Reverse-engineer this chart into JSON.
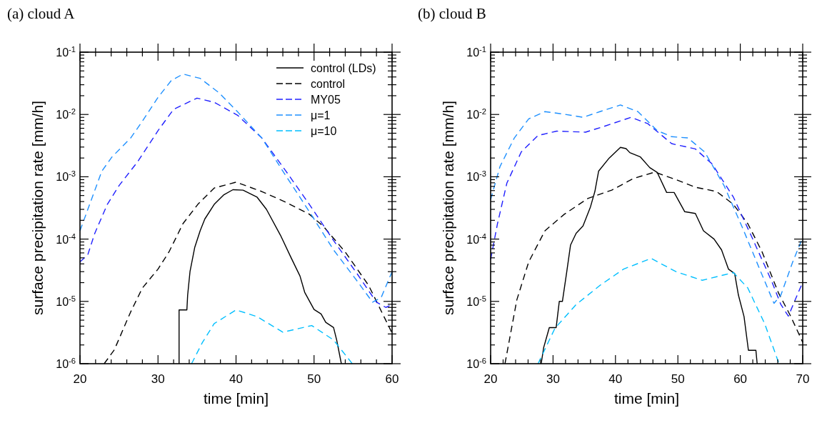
{
  "chart_data": [
    {
      "type": "line",
      "title": "(a) cloud A",
      "xlabel": "time [min]",
      "ylabel": "surface precipitation rate [mm/h]",
      "log": "y",
      "legend": "top right",
      "grid": false,
      "xlim": [
        20,
        60
      ],
      "ylim": [
        1e-06,
        0.1
      ],
      "xticks": [
        20,
        {
          "value": 22,
          "label": null
        },
        {
          "value": 24,
          "label": null
        },
        {
          "value": 26,
          "label": null
        },
        {
          "value": 28,
          "label": null
        },
        30,
        {
          "value": 32,
          "label": null
        },
        {
          "value": 34,
          "label": null
        },
        {
          "value": 36,
          "label": null
        },
        {
          "value": 38,
          "label": null
        },
        40,
        {
          "value": 42,
          "label": null
        },
        {
          "value": 44,
          "label": null
        },
        {
          "value": 46,
          "label": null
        },
        {
          "value": 48,
          "label": null
        },
        50,
        {
          "value": 52,
          "label": null
        },
        {
          "value": 54,
          "label": null
        },
        {
          "value": 56,
          "label": null
        },
        {
          "value": 58,
          "label": null
        },
        60
      ],
      "yticks": [
        {
          "value": 1e-06,
          "label": "10$^{-6}$"
        },
        {
          "value": 2e-06,
          "label": null
        },
        {
          "value": 3e-06,
          "label": null
        },
        {
          "value": 4e-06,
          "label": null
        },
        {
          "value": 5e-06,
          "label": null
        },
        {
          "value": 6e-06,
          "label": null
        },
        {
          "value": 7e-06,
          "label": null
        },
        {
          "value": 8e-06,
          "label": null
        },
        {
          "value": 9e-06,
          "label": null
        },
        {
          "value": 1e-05,
          "label": "10$^{-5}$"
        },
        {
          "value": 2e-05,
          "label": null
        },
        {
          "value": 3e-05,
          "label": null
        },
        {
          "value": 4e-05,
          "label": null
        },
        {
          "value": 5e-05,
          "label": null
        },
        {
          "value": 6e-05,
          "label": null
        },
        {
          "value": 7e-05,
          "label": null
        },
        {
          "value": 8e-05,
          "label": null
        },
        {
          "value": 9e-05,
          "label": null
        },
        {
          "value": 0.0001,
          "label": "10$^{-4}$"
        },
        {
          "value": 0.0002,
          "label": null
        },
        {
          "value": 0.0003,
          "label": null
        },
        {
          "value": 0.0004,
          "label": null
        },
        {
          "value": 0.0005,
          "label": null
        },
        {
          "value": 0.0006,
          "label": null
        },
        {
          "value": 0.0007,
          "label": null
        },
        {
          "value": 0.0008,
          "label": null
        },
        {
          "value": 0.0009,
          "label": null
        },
        {
          "value": 0.001,
          "label": "10$^{-3}$"
        },
        {
          "value": 0.002,
          "label": null
        },
        {
          "value": 0.003,
          "label": null
        },
        {
          "value": 0.004,
          "label": null
        },
        {
          "value": 0.005,
          "label": null
        },
        {
          "value": 0.006,
          "label": null
        },
        {
          "value": 0.007,
          "label": null
        },
        {
          "value": 0.008,
          "label": null
        },
        {
          "value": 0.009,
          "label": null
        },
        {
          "value": 0.01,
          "label": "10$^{-2}$"
        },
        {
          "value": 0.02,
          "label": null
        },
        {
          "value": 0.03,
          "label": null
        },
        {
          "value": 0.04,
          "label": null
        },
        {
          "value": 0.05,
          "label": null
        },
        {
          "value": 0.06,
          "label": null
        },
        {
          "value": 0.07,
          "label": null
        },
        {
          "value": 0.08,
          "label": null
        },
        {
          "value": 0.09,
          "label": null
        },
        {
          "value": 0.1,
          "label": "10$^{-1}$"
        }
      ],
      "series": [
        {
          "name": "control (LDs)",
          "color": "#000000",
          "line_style": "solid",
          "x": [
            32.7,
            32.7,
            33.7,
            33.8,
            34.1,
            34.7,
            35.4,
            36,
            37.2,
            38.4,
            39.6,
            40.9,
            42.7,
            43.9,
            45.7,
            47,
            48.2,
            48.8,
            50,
            50.9,
            51.5,
            52.5,
            52.9,
            53.5
          ],
          "values": [
            1e-06,
            7.3e-06,
            7.3e-06,
            1.26e-05,
            3e-05,
            7.3e-05,
            0.000136,
            0.00021,
            0.00036,
            0.00051,
            0.00062,
            0.00061,
            0.00047,
            0.0003,
            0.000115,
            5.2e-05,
            2.55e-05,
            1.4e-05,
            7.4e-06,
            6.3e-06,
            4.6e-06,
            3.8e-06,
            2.4e-06,
            1e-06
          ]
        },
        {
          "name": "control",
          "color": "#000000",
          "line_style": "dashed",
          "x": [
            23.1,
            24.4,
            26.5,
            28,
            30,
            31.4,
            33.2,
            35.1,
            37.2,
            40,
            43.3,
            46.4,
            49.4,
            51.2,
            54,
            57,
            60
          ],
          "values": [
            1e-06,
            1.67e-06,
            6.8e-06,
            1.64e-05,
            3.3e-05,
            6.2e-05,
            0.000177,
            0.00036,
            0.00066,
            0.00082,
            0.00058,
            0.00039,
            0.00025,
            0.00016,
            6.2e-05,
            1.8e-05,
            3.1e-06
          ]
        },
        {
          "name": "MY05",
          "color": "#2020ff",
          "line_style": "dashed",
          "x": [
            20,
            21,
            21.9,
            23.5,
            25,
            27.4,
            30,
            32,
            35,
            37.2,
            40.2,
            43.3,
            46.4,
            49.4,
            52.5,
            55.5,
            58,
            59.2,
            60
          ],
          "values": [
            4.3e-05,
            5.6e-05,
            0.000124,
            0.00036,
            0.00072,
            0.00175,
            0.0055,
            0.0121,
            0.0183,
            0.0157,
            0.0097,
            0.0042,
            0.00123,
            0.00036,
            9.5e-05,
            2.8e-05,
            9.7e-06,
            8e-06,
            8.9e-06
          ]
        },
        {
          "name": "μ=1",
          "color": "#1e90ff",
          "line_style": "dashed",
          "x": [
            20,
            22.8,
            24.1,
            26.5,
            28,
            30,
            31.7,
            33.2,
            35.4,
            37.8,
            40.2,
            43.3,
            46.4,
            49.4,
            52.5,
            55.5,
            57.5,
            58.6,
            60
          ],
          "values": [
            0.000136,
            0.00123,
            0.00208,
            0.0042,
            0.0078,
            0.0188,
            0.035,
            0.0445,
            0.038,
            0.0224,
            0.011,
            0.0042,
            0.00103,
            0.000275,
            6.7e-05,
            2.14e-05,
            9.7e-06,
            1.15e-05,
            3e-05
          ]
        },
        {
          "name": "μ=10",
          "color": "#00bfff",
          "line_style": "dashed",
          "x": [
            34.3,
            35.7,
            37.2,
            40,
            42.7,
            46,
            49.7,
            52.5,
            54.9
          ],
          "values": [
            1e-06,
            2.2e-06,
            4.4e-06,
            7.3e-06,
            5.7e-06,
            3.2e-06,
            4.1e-06,
            2.4e-06,
            1e-06
          ]
        }
      ]
    },
    {
      "type": "line",
      "title": "(b) cloud B",
      "xlabel": "time [min]",
      "ylabel": "surface precipitation rate [mm/h]",
      "log": "y",
      "grid": false,
      "xlim": [
        20,
        70
      ],
      "ylim": [
        1e-06,
        0.1
      ],
      "xticks": [
        20,
        {
          "value": 22,
          "label": null
        },
        {
          "value": 24,
          "label": null
        },
        {
          "value": 26,
          "label": null
        },
        {
          "value": 28,
          "label": null
        },
        30,
        {
          "value": 32,
          "label": null
        },
        {
          "value": 34,
          "label": null
        },
        {
          "value": 36,
          "label": null
        },
        {
          "value": 38,
          "label": null
        },
        40,
        {
          "value": 42,
          "label": null
        },
        {
          "value": 44,
          "label": null
        },
        {
          "value": 46,
          "label": null
        },
        {
          "value": 48,
          "label": null
        },
        50,
        {
          "value": 52,
          "label": null
        },
        {
          "value": 54,
          "label": null
        },
        {
          "value": 56,
          "label": null
        },
        {
          "value": 58,
          "label": null
        },
        60,
        {
          "value": 62,
          "label": null
        },
        {
          "value": 64,
          "label": null
        },
        {
          "value": 66,
          "label": null
        },
        {
          "value": 68,
          "label": null
        },
        70
      ],
      "yticks": [
        {
          "value": 1e-06,
          "label": "10$^{-6}$"
        },
        {
          "value": 2e-06,
          "label": null
        },
        {
          "value": 3e-06,
          "label": null
        },
        {
          "value": 4e-06,
          "label": null
        },
        {
          "value": 5e-06,
          "label": null
        },
        {
          "value": 6e-06,
          "label": null
        },
        {
          "value": 7e-06,
          "label": null
        },
        {
          "value": 8e-06,
          "label": null
        },
        {
          "value": 9e-06,
          "label": null
        },
        {
          "value": 1e-05,
          "label": "10$^{-5}$"
        },
        {
          "value": 2e-05,
          "label": null
        },
        {
          "value": 3e-05,
          "label": null
        },
        {
          "value": 4e-05,
          "label": null
        },
        {
          "value": 5e-05,
          "label": null
        },
        {
          "value": 6e-05,
          "label": null
        },
        {
          "value": 7e-05,
          "label": null
        },
        {
          "value": 8e-05,
          "label": null
        },
        {
          "value": 9e-05,
          "label": null
        },
        {
          "value": 0.0001,
          "label": "10$^{-4}$"
        },
        {
          "value": 0.0002,
          "label": null
        },
        {
          "value": 0.0003,
          "label": null
        },
        {
          "value": 0.0004,
          "label": null
        },
        {
          "value": 0.0005,
          "label": null
        },
        {
          "value": 0.0006,
          "label": null
        },
        {
          "value": 0.0007,
          "label": null
        },
        {
          "value": 0.0008,
          "label": null
        },
        {
          "value": 0.0009,
          "label": null
        },
        {
          "value": 0.001,
          "label": "10$^{-3}$"
        },
        {
          "value": 0.002,
          "label": null
        },
        {
          "value": 0.003,
          "label": null
        },
        {
          "value": 0.004,
          "label": null
        },
        {
          "value": 0.005,
          "label": null
        },
        {
          "value": 0.006,
          "label": null
        },
        {
          "value": 0.007,
          "label": null
        },
        {
          "value": 0.008,
          "label": null
        },
        {
          "value": 0.009,
          "label": null
        },
        {
          "value": 0.01,
          "label": "10$^{-2}$"
        },
        {
          "value": 0.02,
          "label": null
        },
        {
          "value": 0.03,
          "label": null
        },
        {
          "value": 0.04,
          "label": null
        },
        {
          "value": 0.05,
          "label": null
        },
        {
          "value": 0.06,
          "label": null
        },
        {
          "value": 0.07,
          "label": null
        },
        {
          "value": 0.08,
          "label": null
        },
        {
          "value": 0.09,
          "label": null
        },
        {
          "value": 0.1,
          "label": "10$^{-1}$"
        }
      ],
      "series": [
        {
          "color": "#000000",
          "line_style": "solid",
          "x": [
            28.1,
            28.5,
            29.4,
            30.5,
            31,
            31.5,
            32.2,
            32.8,
            33.7,
            34.8,
            36,
            36.7,
            37.3,
            39,
            40.8,
            41.7,
            42.3,
            44,
            45.5,
            46.7,
            48.2,
            49.4,
            51.1,
            52.8,
            54.1,
            55.8,
            57,
            58.1,
            59.1,
            59.7,
            60.6,
            61.3,
            62.5,
            62.7
          ],
          "values": [
            1e-06,
            1.82e-06,
            3.8e-06,
            3.8e-06,
            1e-05,
            1e-05,
            3e-05,
            8e-05,
            0.000124,
            0.000162,
            0.00033,
            0.00058,
            0.00123,
            0.002,
            0.00296,
            0.00283,
            0.00244,
            0.00208,
            0.0014,
            0.00117,
            0.00056,
            0.00056,
            0.000275,
            0.000258,
            0.000136,
            0.0001,
            6.7e-05,
            3.3e-05,
            2.8e-05,
            1.26e-05,
            5.7e-06,
            1.64e-06,
            1.64e-06,
            1e-06
          ]
        },
        {
          "color": "#000000",
          "line_style": "dashed",
          "x": [
            22.3,
            24.2,
            26.1,
            28.7,
            31.8,
            35.6,
            39.4,
            42.9,
            46.3,
            49.7,
            52.8,
            56.2,
            58.9,
            61.2,
            63.5,
            66.1,
            68.1,
            70
          ],
          "values": [
            1e-06,
            1.06e-05,
            4.3e-05,
            0.000136,
            0.00025,
            0.00045,
            0.00061,
            0.00094,
            0.00119,
            0.0009,
            0.00068,
            0.00058,
            0.00036,
            0.000177,
            6.2e-05,
            1.38e-05,
            5.7e-06,
            2.2e-06
          ]
        },
        {
          "color": "#2020ff",
          "line_style": "dashed",
          "x": [
            20,
            21.1,
            22.6,
            24.9,
            27.6,
            30.6,
            35.2,
            38.3,
            42.5,
            45.2,
            49,
            52.8,
            55.5,
            58.9,
            61.9,
            65,
            66.5,
            67.7,
            68.8,
            70
          ],
          "values": [
            4.7e-05,
            0.000177,
            0.00079,
            0.0025,
            0.0046,
            0.0054,
            0.0052,
            0.0065,
            0.009,
            0.0071,
            0.0034,
            0.0028,
            0.0016,
            0.00047,
            0.000105,
            2.14e-05,
            8.9e-06,
            5.8e-06,
            1.06e-05,
            2.04e-05
          ]
        },
        {
          "color": "#1e90ff",
          "line_style": "dashed",
          "x": [
            20,
            21.5,
            23.8,
            26.1,
            28.7,
            31.8,
            34.8,
            37.5,
            40.8,
            43.6,
            46.7,
            49,
            51.6,
            54.3,
            57.4,
            60.4,
            63.1,
            65.4,
            66.5,
            68.4,
            70
          ],
          "values": [
            0.00043,
            0.00146,
            0.0042,
            0.0085,
            0.0111,
            0.0101,
            0.009,
            0.0111,
            0.0142,
            0.0111,
            0.0055,
            0.0044,
            0.0042,
            0.0025,
            0.00072,
            0.000148,
            3.3e-05,
            9.3e-06,
            1.26e-05,
            4.3e-05,
            0.000106
          ]
        },
        {
          "color": "#00bfff",
          "line_style": "dashed",
          "x": [
            27.6,
            30.3,
            33.7,
            37.5,
            41.3,
            45.7,
            49.7,
            53.9,
            58.9,
            61.2,
            63.9,
            66.2
          ],
          "values": [
            1e-06,
            3.7e-06,
            8.9e-06,
            1.8e-05,
            3.3e-05,
            4.9e-05,
            3e-05,
            2.18e-05,
            2.9e-05,
            1.64e-05,
            4.4e-06,
            1e-06
          ]
        }
      ]
    }
  ]
}
